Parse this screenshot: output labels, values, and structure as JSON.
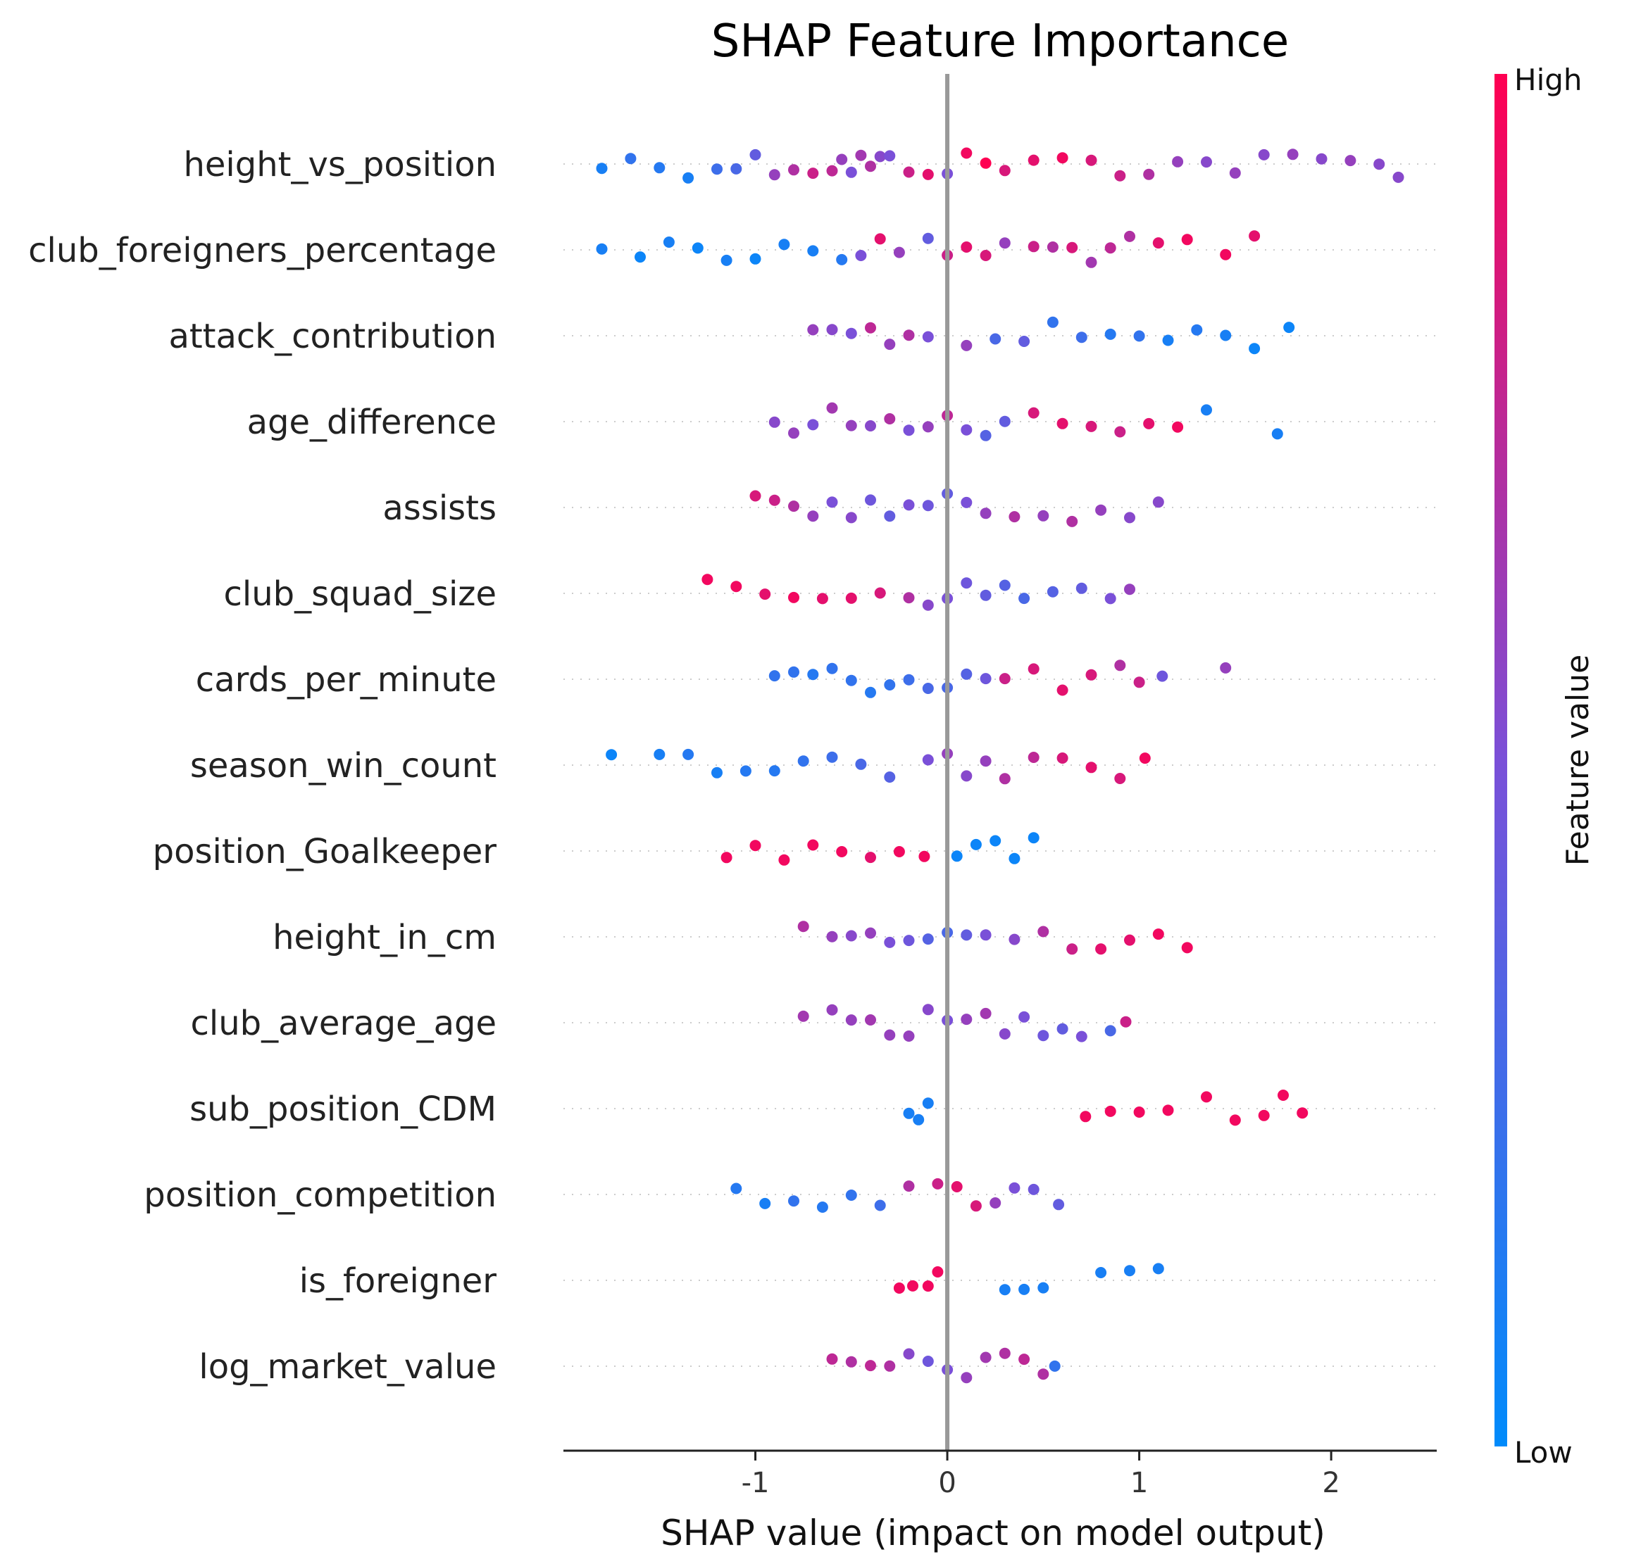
{
  "chart_data": {
    "type": "scatter",
    "subtype": "shap-beeswarm",
    "title": "SHAP Feature Importance",
    "xlabel": "SHAP value (impact on model output)",
    "xlim": [
      -2.0,
      2.55
    ],
    "xticks": [
      -1,
      0,
      1,
      2
    ],
    "xtick_labels": [
      "-1",
      "0",
      "1",
      "2"
    ],
    "zero_line": 0,
    "grid": false,
    "colorbar": {
      "title": "Feature value",
      "high_label": "High",
      "low_label": "Low",
      "low_color": "#008bfb",
      "high_color": "#ff0052"
    },
    "features": [
      {
        "name": "height_vs_position",
        "points": [
          [
            -1.8,
            0.1
          ],
          [
            -1.65,
            0.2
          ],
          [
            -1.5,
            0.15
          ],
          [
            -1.35,
            0.1
          ],
          [
            -1.2,
            0.25
          ],
          [
            -1.1,
            0.3
          ],
          [
            -1.0,
            0.4
          ],
          [
            -0.9,
            0.6
          ],
          [
            -0.8,
            0.7
          ],
          [
            -0.7,
            0.8
          ],
          [
            -0.6,
            0.75
          ],
          [
            -0.55,
            0.6
          ],
          [
            -0.5,
            0.5
          ],
          [
            -0.45,
            0.65
          ],
          [
            -0.4,
            0.7
          ],
          [
            -0.35,
            0.55
          ],
          [
            -0.3,
            0.5
          ],
          [
            -0.2,
            0.8
          ],
          [
            -0.1,
            0.9
          ],
          [
            0.0,
            0.5
          ],
          [
            0.1,
            0.95
          ],
          [
            0.2,
            1.0
          ],
          [
            0.3,
            0.85
          ],
          [
            0.45,
            0.9
          ],
          [
            0.6,
            0.95
          ],
          [
            0.75,
            0.85
          ],
          [
            0.9,
            0.8
          ],
          [
            1.05,
            0.7
          ],
          [
            1.2,
            0.6
          ],
          [
            1.35,
            0.55
          ],
          [
            1.5,
            0.6
          ],
          [
            1.65,
            0.55
          ],
          [
            1.8,
            0.6
          ],
          [
            1.95,
            0.55
          ],
          [
            2.1,
            0.6
          ],
          [
            2.25,
            0.55
          ],
          [
            2.35,
            0.55
          ]
        ]
      },
      {
        "name": "club_foreigners_percentage",
        "points": [
          [
            -1.8,
            0.1
          ],
          [
            -1.6,
            0.05
          ],
          [
            -1.45,
            0.1
          ],
          [
            -1.3,
            0.05
          ],
          [
            -1.15,
            0.1
          ],
          [
            -1.0,
            0.05
          ],
          [
            -0.85,
            0.1
          ],
          [
            -0.7,
            0.1
          ],
          [
            -0.55,
            0.15
          ],
          [
            -0.45,
            0.5
          ],
          [
            -0.35,
            0.9
          ],
          [
            -0.25,
            0.6
          ],
          [
            -0.1,
            0.4
          ],
          [
            0.0,
            0.8
          ],
          [
            0.1,
            0.9
          ],
          [
            0.2,
            0.85
          ],
          [
            0.3,
            0.6
          ],
          [
            0.45,
            0.8
          ],
          [
            0.55,
            0.7
          ],
          [
            0.65,
            0.85
          ],
          [
            0.75,
            0.65
          ],
          [
            0.85,
            0.75
          ],
          [
            0.95,
            0.7
          ],
          [
            1.1,
            0.9
          ],
          [
            1.25,
            0.95
          ],
          [
            1.45,
            0.95
          ],
          [
            1.6,
            0.9
          ]
        ]
      },
      {
        "name": "attack_contribution",
        "points": [
          [
            -0.7,
            0.6
          ],
          [
            -0.6,
            0.55
          ],
          [
            -0.5,
            0.5
          ],
          [
            -0.4,
            0.75
          ],
          [
            -0.3,
            0.6
          ],
          [
            -0.2,
            0.7
          ],
          [
            -0.1,
            0.5
          ],
          [
            0.1,
            0.6
          ],
          [
            0.25,
            0.3
          ],
          [
            0.4,
            0.4
          ],
          [
            0.55,
            0.2
          ],
          [
            0.7,
            0.25
          ],
          [
            0.85,
            0.15
          ],
          [
            1.0,
            0.2
          ],
          [
            1.15,
            0.1
          ],
          [
            1.3,
            0.15
          ],
          [
            1.45,
            0.1
          ],
          [
            1.6,
            0.05
          ],
          [
            1.78,
            0.05
          ]
        ]
      },
      {
        "name": "age_difference",
        "points": [
          [
            -0.9,
            0.55
          ],
          [
            -0.8,
            0.6
          ],
          [
            -0.7,
            0.5
          ],
          [
            -0.6,
            0.65
          ],
          [
            -0.5,
            0.6
          ],
          [
            -0.4,
            0.55
          ],
          [
            -0.3,
            0.7
          ],
          [
            -0.2,
            0.5
          ],
          [
            -0.1,
            0.6
          ],
          [
            0.0,
            0.75
          ],
          [
            0.1,
            0.5
          ],
          [
            0.2,
            0.35
          ],
          [
            0.3,
            0.4
          ],
          [
            0.45,
            0.85
          ],
          [
            0.6,
            0.9
          ],
          [
            0.75,
            0.85
          ],
          [
            0.9,
            0.8
          ],
          [
            1.05,
            0.9
          ],
          [
            1.2,
            0.95
          ],
          [
            1.35,
            0.1
          ],
          [
            1.72,
            0.1
          ]
        ]
      },
      {
        "name": "assists",
        "points": [
          [
            -1.0,
            0.85
          ],
          [
            -0.9,
            0.8
          ],
          [
            -0.8,
            0.7
          ],
          [
            -0.7,
            0.6
          ],
          [
            -0.6,
            0.5
          ],
          [
            -0.5,
            0.55
          ],
          [
            -0.4,
            0.45
          ],
          [
            -0.3,
            0.4
          ],
          [
            -0.2,
            0.5
          ],
          [
            -0.1,
            0.45
          ],
          [
            0.0,
            0.4
          ],
          [
            0.1,
            0.5
          ],
          [
            0.2,
            0.6
          ],
          [
            0.35,
            0.7
          ],
          [
            0.5,
            0.6
          ],
          [
            0.65,
            0.7
          ],
          [
            0.8,
            0.6
          ],
          [
            0.95,
            0.55
          ],
          [
            1.1,
            0.55
          ]
        ]
      },
      {
        "name": "club_squad_size",
        "points": [
          [
            -1.25,
            0.95
          ],
          [
            -1.1,
            0.95
          ],
          [
            -0.95,
            0.9
          ],
          [
            -0.8,
            0.95
          ],
          [
            -0.65,
            0.9
          ],
          [
            -0.5,
            0.9
          ],
          [
            -0.35,
            0.85
          ],
          [
            -0.2,
            0.7
          ],
          [
            -0.1,
            0.55
          ],
          [
            0.0,
            0.5
          ],
          [
            0.1,
            0.45
          ],
          [
            0.2,
            0.4
          ],
          [
            0.3,
            0.35
          ],
          [
            0.4,
            0.3
          ],
          [
            0.55,
            0.35
          ],
          [
            0.7,
            0.4
          ],
          [
            0.85,
            0.5
          ],
          [
            0.95,
            0.6
          ]
        ]
      },
      {
        "name": "cards_per_minute",
        "points": [
          [
            -0.9,
            0.2
          ],
          [
            -0.8,
            0.2
          ],
          [
            -0.7,
            0.15
          ],
          [
            -0.6,
            0.2
          ],
          [
            -0.5,
            0.2
          ],
          [
            -0.4,
            0.15
          ],
          [
            -0.3,
            0.2
          ],
          [
            -0.2,
            0.25
          ],
          [
            -0.1,
            0.3
          ],
          [
            0.0,
            0.3
          ],
          [
            0.1,
            0.35
          ],
          [
            0.2,
            0.45
          ],
          [
            0.3,
            0.8
          ],
          [
            0.45,
            0.85
          ],
          [
            0.6,
            0.9
          ],
          [
            0.75,
            0.85
          ],
          [
            0.9,
            0.7
          ],
          [
            1.0,
            0.8
          ],
          [
            1.12,
            0.45
          ],
          [
            1.45,
            0.6
          ]
        ]
      },
      {
        "name": "season_win_count",
        "points": [
          [
            -1.75,
            0.05
          ],
          [
            -1.5,
            0.1
          ],
          [
            -1.35,
            0.15
          ],
          [
            -1.2,
            0.1
          ],
          [
            -1.05,
            0.15
          ],
          [
            -0.9,
            0.15
          ],
          [
            -0.75,
            0.2
          ],
          [
            -0.6,
            0.25
          ],
          [
            -0.45,
            0.3
          ],
          [
            -0.3,
            0.35
          ],
          [
            -0.1,
            0.5
          ],
          [
            0.0,
            0.6
          ],
          [
            0.1,
            0.55
          ],
          [
            0.2,
            0.6
          ],
          [
            0.3,
            0.7
          ],
          [
            0.45,
            0.75
          ],
          [
            0.6,
            0.85
          ],
          [
            0.75,
            0.9
          ],
          [
            0.9,
            0.85
          ],
          [
            1.03,
            0.95
          ]
        ]
      },
      {
        "name": "position_Goalkeeper",
        "points": [
          [
            -1.15,
            0.95
          ],
          [
            -1.0,
            0.95
          ],
          [
            -0.85,
            0.95
          ],
          [
            -0.7,
            0.95
          ],
          [
            -0.55,
            0.95
          ],
          [
            -0.4,
            0.9
          ],
          [
            -0.25,
            0.95
          ],
          [
            -0.12,
            0.95
          ],
          [
            0.05,
            0.05
          ],
          [
            0.15,
            0.05
          ],
          [
            0.25,
            0.05
          ],
          [
            0.35,
            0.05
          ],
          [
            0.45,
            0.05
          ]
        ]
      },
      {
        "name": "height_in_cm",
        "points": [
          [
            -0.75,
            0.7
          ],
          [
            -0.6,
            0.6
          ],
          [
            -0.5,
            0.55
          ],
          [
            -0.4,
            0.6
          ],
          [
            -0.3,
            0.5
          ],
          [
            -0.2,
            0.45
          ],
          [
            -0.1,
            0.35
          ],
          [
            0.0,
            0.3
          ],
          [
            0.1,
            0.4
          ],
          [
            0.2,
            0.5
          ],
          [
            0.35,
            0.55
          ],
          [
            0.5,
            0.7
          ],
          [
            0.65,
            0.8
          ],
          [
            0.8,
            0.9
          ],
          [
            0.95,
            0.9
          ],
          [
            1.1,
            0.95
          ],
          [
            1.25,
            0.95
          ]
        ]
      },
      {
        "name": "club_average_age",
        "points": [
          [
            -0.75,
            0.65
          ],
          [
            -0.6,
            0.6
          ],
          [
            -0.5,
            0.6
          ],
          [
            -0.4,
            0.65
          ],
          [
            -0.3,
            0.6
          ],
          [
            -0.2,
            0.6
          ],
          [
            -0.1,
            0.55
          ],
          [
            0.0,
            0.5
          ],
          [
            0.1,
            0.6
          ],
          [
            0.2,
            0.65
          ],
          [
            0.3,
            0.55
          ],
          [
            0.4,
            0.5
          ],
          [
            0.5,
            0.45
          ],
          [
            0.6,
            0.4
          ],
          [
            0.7,
            0.5
          ],
          [
            0.85,
            0.3
          ],
          [
            0.93,
            0.8
          ]
        ]
      },
      {
        "name": "sub_position_CDM",
        "points": [
          [
            -0.2,
            0.1
          ],
          [
            -0.15,
            0.1
          ],
          [
            -0.1,
            0.1
          ],
          [
            0.72,
            0.95
          ],
          [
            0.85,
            0.95
          ],
          [
            1.0,
            0.95
          ],
          [
            1.15,
            0.95
          ],
          [
            1.35,
            0.95
          ],
          [
            1.5,
            0.95
          ],
          [
            1.65,
            0.95
          ],
          [
            1.75,
            0.95
          ],
          [
            1.85,
            0.95
          ]
        ]
      },
      {
        "name": "position_competition",
        "points": [
          [
            -1.1,
            0.15
          ],
          [
            -0.95,
            0.1
          ],
          [
            -0.8,
            0.2
          ],
          [
            -0.65,
            0.15
          ],
          [
            -0.5,
            0.2
          ],
          [
            -0.35,
            0.25
          ],
          [
            -0.2,
            0.7
          ],
          [
            -0.05,
            0.8
          ],
          [
            0.05,
            0.9
          ],
          [
            0.15,
            0.85
          ],
          [
            0.25,
            0.6
          ],
          [
            0.35,
            0.5
          ],
          [
            0.45,
            0.45
          ],
          [
            0.58,
            0.4
          ]
        ]
      },
      {
        "name": "is_foreigner",
        "points": [
          [
            -0.25,
            0.95
          ],
          [
            -0.18,
            0.95
          ],
          [
            -0.1,
            0.95
          ],
          [
            -0.05,
            0.95
          ],
          [
            0.3,
            0.1
          ],
          [
            0.4,
            0.1
          ],
          [
            0.5,
            0.1
          ],
          [
            0.8,
            0.1
          ],
          [
            0.95,
            0.1
          ],
          [
            1.1,
            0.1
          ]
        ]
      },
      {
        "name": "log_market_value",
        "points": [
          [
            -0.6,
            0.75
          ],
          [
            -0.5,
            0.7
          ],
          [
            -0.4,
            0.75
          ],
          [
            -0.3,
            0.7
          ],
          [
            -0.2,
            0.55
          ],
          [
            -0.1,
            0.45
          ],
          [
            0.0,
            0.5
          ],
          [
            0.1,
            0.6
          ],
          [
            0.2,
            0.65
          ],
          [
            0.3,
            0.7
          ],
          [
            0.4,
            0.75
          ],
          [
            0.5,
            0.7
          ],
          [
            0.56,
            0.2
          ]
        ]
      }
    ]
  }
}
